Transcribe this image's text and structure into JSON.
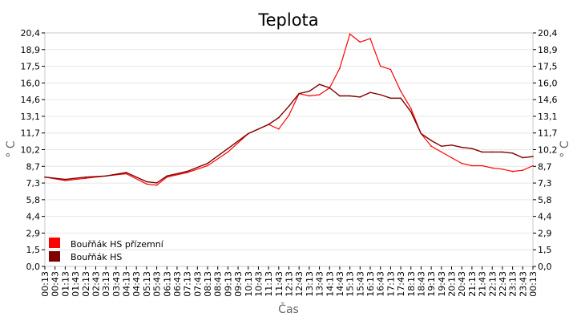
{
  "chart_data": {
    "type": "line",
    "title": "Teplota",
    "xlabel": "Čas",
    "ylabel": "° C",
    "ylabel_right": "° C",
    "ylim": [
      0,
      20.4
    ],
    "y_ticks": [
      "0,0",
      "1,5",
      "2,9",
      "4,4",
      "5,8",
      "7,3",
      "8,7",
      "10,2",
      "11,7",
      "13,1",
      "14,6",
      "16,0",
      "17,5",
      "18,9",
      "20,4"
    ],
    "x_ticks": [
      "00:13",
      "00:43",
      "01:13",
      "01:43",
      "02:13",
      "02:43",
      "03:13",
      "03:43",
      "04:13",
      "04:43",
      "05:13",
      "05:43",
      "06:13",
      "06:43",
      "07:13",
      "07:43",
      "08:13",
      "08:43",
      "09:13",
      "09:43",
      "10:13",
      "10:43",
      "11:13",
      "11:43",
      "12:13",
      "12:43",
      "13:13",
      "13:43",
      "14:13",
      "14:43",
      "15:13",
      "15:43",
      "16:13",
      "16:43",
      "17:13",
      "17:43",
      "18:13",
      "18:43",
      "19:13",
      "19:43",
      "20:13",
      "20:43",
      "21:13",
      "21:43",
      "22:13",
      "22:43",
      "23:13",
      "23:43",
      "00:13"
    ],
    "grid": true,
    "legend_position": "bottom-left",
    "series": [
      {
        "name": "Bouřňák HS přízemní",
        "color": "#ff0000",
        "x": [
          "00:13",
          "01:13",
          "02:13",
          "03:13",
          "04:13",
          "05:13",
          "05:43",
          "06:13",
          "07:13",
          "08:13",
          "09:13",
          "10:13",
          "11:13",
          "11:43",
          "12:13",
          "12:43",
          "13:13",
          "13:43",
          "14:13",
          "14:43",
          "15:13",
          "15:43",
          "16:13",
          "16:43",
          "17:13",
          "17:43",
          "18:13",
          "18:43",
          "19:13",
          "19:43",
          "20:13",
          "20:43",
          "21:13",
          "21:43",
          "22:13",
          "22:43",
          "23:13",
          "23:43",
          "00:13"
        ],
        "values": [
          7.8,
          7.5,
          7.7,
          7.9,
          8.1,
          7.2,
          7.1,
          7.8,
          8.2,
          8.8,
          10.0,
          11.6,
          12.4,
          12.0,
          13.2,
          15.1,
          14.9,
          15.0,
          15.6,
          17.3,
          20.3,
          19.6,
          19.9,
          17.5,
          17.2,
          15.3,
          13.8,
          11.6,
          10.5,
          10.0,
          9.5,
          9.0,
          8.8,
          8.8,
          8.6,
          8.5,
          8.3,
          8.4,
          8.8
        ]
      },
      {
        "name": "Bouřňák HS",
        "color": "#800000",
        "x": [
          "00:13",
          "01:13",
          "02:13",
          "03:13",
          "04:13",
          "05:13",
          "05:43",
          "06:13",
          "07:13",
          "08:13",
          "09:13",
          "10:13",
          "11:13",
          "11:43",
          "12:13",
          "12:43",
          "13:13",
          "13:43",
          "14:13",
          "14:43",
          "15:13",
          "15:43",
          "16:13",
          "16:43",
          "17:13",
          "17:43",
          "18:13",
          "18:43",
          "19:13",
          "19:43",
          "20:13",
          "20:43",
          "21:13",
          "21:43",
          "22:13",
          "22:43",
          "23:13",
          "23:43",
          "00:13"
        ],
        "values": [
          7.8,
          7.6,
          7.8,
          7.9,
          8.2,
          7.4,
          7.3,
          7.9,
          8.3,
          9.0,
          10.3,
          11.6,
          12.4,
          13.0,
          14.0,
          15.1,
          15.3,
          15.9,
          15.6,
          14.9,
          14.9,
          14.8,
          15.2,
          15.0,
          14.7,
          14.7,
          13.5,
          11.6,
          11.0,
          10.5,
          10.6,
          10.4,
          10.3,
          10.0,
          10.0,
          10.0,
          9.9,
          9.5,
          9.6
        ]
      }
    ]
  }
}
